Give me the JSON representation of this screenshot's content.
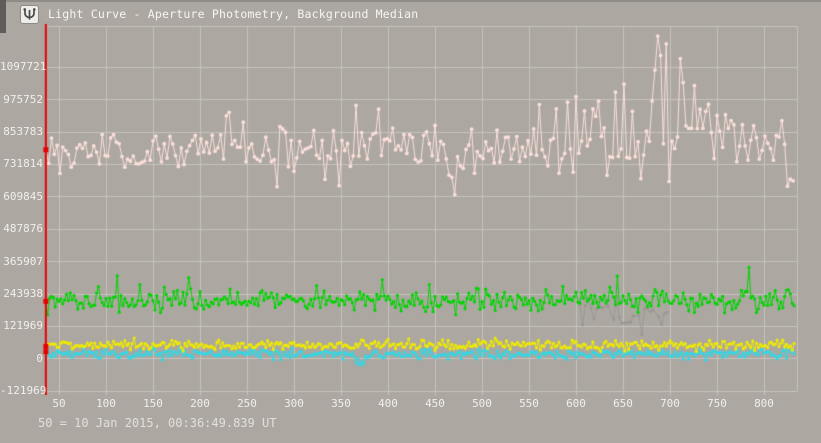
{
  "window": {
    "title": "Light Curve - Aperture Photometry, Background Median",
    "icon": "app-mask-icon"
  },
  "caption": "50 = 10 Jan 2015, 00:36:49.839 UT",
  "colors": {
    "bg": "#aca7a1",
    "grid": "#c6c2bc",
    "label": "#f2efeb",
    "caption": "#e3dfda",
    "title": "#f7f5f2",
    "edge": "#8f8b87",
    "edge_dark": "#5f5c59",
    "cursor": "#e60000"
  },
  "chart_data": {
    "type": "scatter",
    "title": "Light Curve - Aperture Photometry, Background Median",
    "xlabel": "",
    "ylabel": "",
    "grid": true,
    "legend": "none",
    "x_ticks": [
      50,
      100,
      150,
      200,
      250,
      300,
      350,
      400,
      450,
      500,
      550,
      600,
      650,
      700,
      750,
      800
    ],
    "y_ticks": [
      1097721,
      975752,
      853783,
      731814,
      609845,
      487876,
      365907,
      243938,
      121969,
      0,
      -121969
    ],
    "y_tick_interval": 121969,
    "x_range": [
      36,
      833
    ],
    "y_range": [
      -121969,
      1251000
    ],
    "seed": 42,
    "red_cursor": {
      "data_x": 36
    },
    "series": [
      {
        "name": "gray-check-series",
        "color": "#9a9792",
        "range": [
          604,
          698
        ],
        "step": 3,
        "density": 0.75,
        "dot_radius": 1.6,
        "marked": false,
        "mean_profile": [
          [
            604,
            185000
          ],
          [
            630,
            158000
          ],
          [
            662,
            148000
          ],
          [
            698,
            180000
          ]
        ],
        "std_profile": [
          [
            604,
            30000
          ],
          [
            698,
            38000
          ]
        ]
      },
      {
        "name": "pink-target-series",
        "color": "#fbdfda",
        "range": [
          36,
          833
        ],
        "step": 3,
        "dot_radius": 1.9,
        "marked": true,
        "mean_profile": [
          [
            36,
            782000
          ],
          [
            90,
            772000
          ],
          [
            140,
            770000
          ],
          [
            190,
            788000
          ],
          [
            235,
            812000
          ],
          [
            290,
            780000
          ],
          [
            330,
            772000
          ],
          [
            370,
            800000
          ],
          [
            420,
            792000
          ],
          [
            465,
            762000
          ],
          [
            520,
            772000
          ],
          [
            565,
            786000
          ],
          [
            610,
            822000
          ],
          [
            655,
            846000
          ],
          [
            700,
            858000
          ],
          [
            745,
            850000
          ],
          [
            790,
            815000
          ],
          [
            820,
            792000
          ],
          [
            833,
            740000
          ]
        ],
        "std_profile": [
          [
            36,
            38000
          ],
          [
            150,
            42000
          ],
          [
            300,
            45000
          ],
          [
            450,
            48000
          ],
          [
            550,
            52000
          ],
          [
            620,
            68000
          ],
          [
            700,
            82000
          ],
          [
            760,
            68000
          ],
          [
            833,
            46000
          ]
        ],
        "upper_boost": [
          [
            36,
            1
          ],
          [
            560,
            1
          ],
          [
            600,
            1.45
          ],
          [
            700,
            1.55
          ],
          [
            770,
            1.15
          ],
          [
            833,
            1
          ]
        ],
        "outliers": [
          [
            688,
            1213000
          ],
          [
            691,
            1140000
          ],
          [
            685,
            1085000
          ],
          [
            712,
            1128000
          ],
          [
            715,
            1038000
          ],
          [
            652,
            1032000
          ],
          [
            643,
            1002000
          ],
          [
            624,
            968000
          ],
          [
            601,
            985000
          ],
          [
            560,
            955000
          ],
          [
            367,
            952000
          ],
          [
            391,
            938000
          ],
          [
            232,
            926000
          ],
          [
            470,
            616000
          ],
          [
            349,
            650000
          ],
          [
            283,
            646000
          ],
          [
            829,
            674000
          ],
          [
            832,
            668000
          ]
        ]
      },
      {
        "name": "green-comparison-series",
        "color": "#00d400",
        "range": [
          36,
          833
        ],
        "step": 2,
        "dot_radius": 1.6,
        "marked": true,
        "mean_profile": [
          [
            36,
            216000
          ],
          [
            833,
            216000
          ]
        ],
        "std_profile": [
          [
            36,
            20000
          ],
          [
            833,
            20000
          ]
        ],
        "spike": {
          "prob": 0.05,
          "min": 25000,
          "max": 95000
        }
      },
      {
        "name": "cyan-series",
        "color": "#2fd8e6",
        "range": [
          36,
          833
        ],
        "step": 2,
        "dot_radius": 1.6,
        "marked": true,
        "mean_profile": [
          [
            36,
            17000
          ],
          [
            360,
            17000
          ],
          [
            372,
            -4000
          ],
          [
            382,
            14000
          ],
          [
            833,
            17000
          ]
        ],
        "std_profile": [
          [
            36,
            9000
          ],
          [
            833,
            9000
          ]
        ],
        "outliers": [
          [
            366,
            -18000
          ],
          [
            370,
            -26000
          ],
          [
            374,
            -21000
          ]
        ]
      },
      {
        "name": "yellow-series",
        "color": "#eeea00",
        "range": [
          36,
          833
        ],
        "step": 2,
        "dot_radius": 1.6,
        "marked": true,
        "mean_profile": [
          [
            36,
            50000
          ],
          [
            833,
            50000
          ]
        ],
        "std_profile": [
          [
            36,
            10000
          ],
          [
            833,
            10000
          ]
        ]
      }
    ]
  }
}
